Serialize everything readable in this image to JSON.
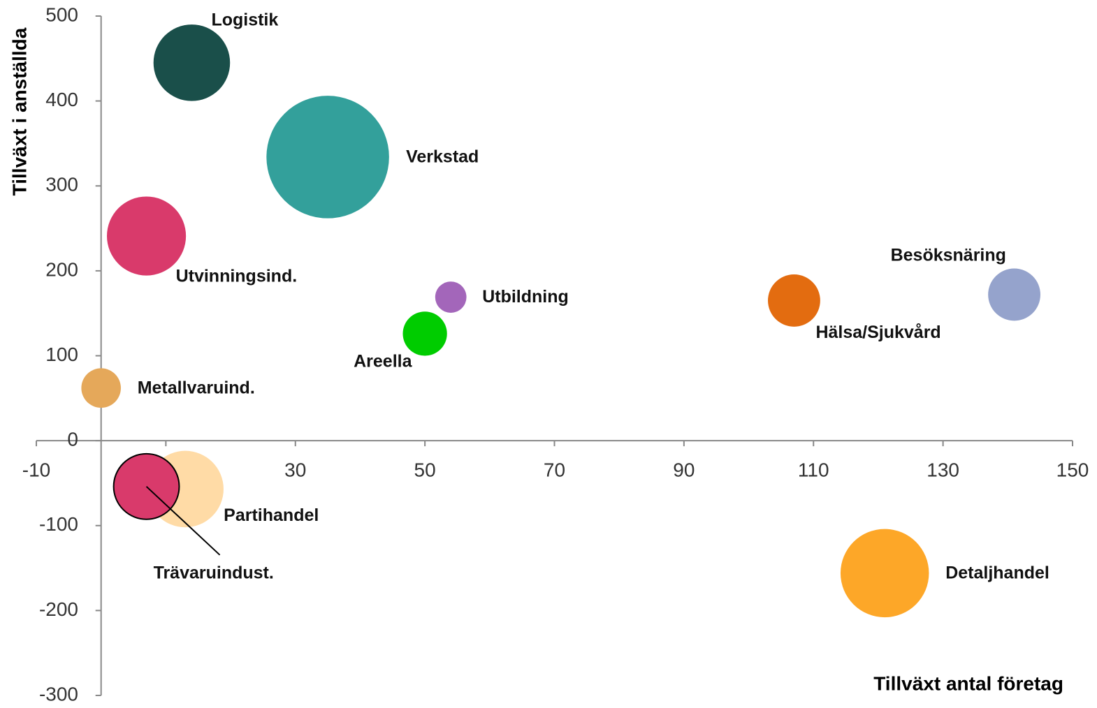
{
  "chart_data": {
    "type": "bubble",
    "xlabel": "Tillväxt antal företag",
    "ylabel": "Tillväxt i anställda",
    "xlim": [
      -10,
      150
    ],
    "xticks": [
      -10,
      10,
      30,
      50,
      70,
      90,
      110,
      130,
      150
    ],
    "ylim": [
      -300,
      500
    ],
    "yticks": [
      -300,
      -200,
      -100,
      0,
      100,
      200,
      300,
      400,
      500
    ],
    "points": [
      {
        "name": "Logistik",
        "x": 14,
        "y": 445,
        "size": 30,
        "color": "#1a4f4a"
      },
      {
        "name": "Verkstad",
        "x": 35,
        "y": 334,
        "size": 77,
        "color": "#33a09b"
      },
      {
        "name": "Utvinningsind.",
        "x": 7,
        "y": 241,
        "size": 32,
        "color": "#d93a6b"
      },
      {
        "name": "Utbildning",
        "x": 54,
        "y": 169,
        "size": 5,
        "color": "#a366ba"
      },
      {
        "name": "Areella",
        "x": 50,
        "y": 126,
        "size": 10,
        "color": "#00cc00"
      },
      {
        "name": "Metallvaruind.",
        "x": 0,
        "y": 62,
        "size": 8,
        "color": "#e5a85a"
      },
      {
        "name": "Hälsa/Sjukvård",
        "x": 107,
        "y": 165,
        "size": 14,
        "color": "#e36c10"
      },
      {
        "name": "Besöksnäring",
        "x": 141,
        "y": 172,
        "size": 14,
        "color": "#95a3cc"
      },
      {
        "name": "Partihandel",
        "x": 13,
        "y": -57,
        "size": 30,
        "color": "#ffdba6"
      },
      {
        "name": "Trävaruindust.",
        "x": 7,
        "y": -54,
        "size": 22,
        "color": "#d93a6b",
        "edgecolor": "#000000"
      },
      {
        "name": "Detaljhandel",
        "x": 121,
        "y": -156,
        "size": 40,
        "color": "#fda728"
      }
    ]
  }
}
